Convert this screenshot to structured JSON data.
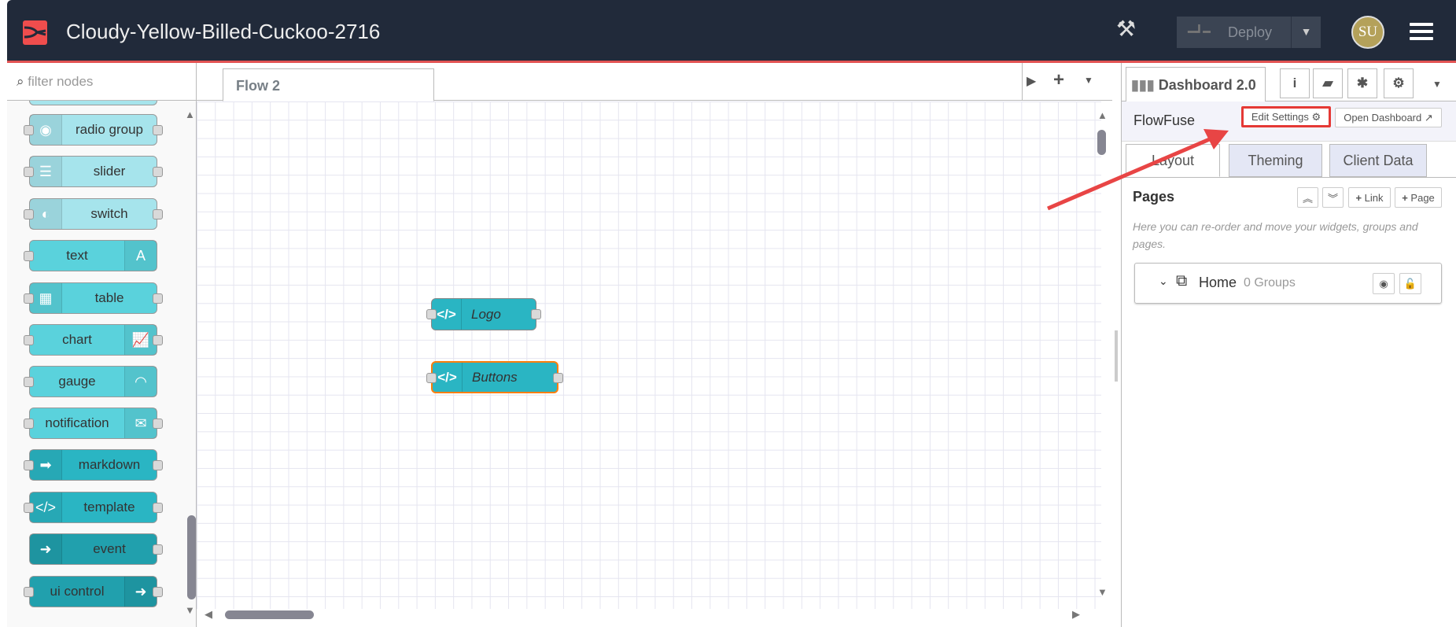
{
  "header": {
    "title": "Cloudy-Yellow-Billed-Cuckoo-2716",
    "deploy_label": "Deploy",
    "avatar_initials": "SU"
  },
  "palette": {
    "filter_placeholder": "filter nodes",
    "nodes": [
      {
        "label": "radio group",
        "icon": "radio-icon",
        "glyph": "◉",
        "side": "left",
        "color": "#a6e4ec",
        "in": true,
        "out": true
      },
      {
        "label": "slider",
        "icon": "slider-icon",
        "glyph": "☰",
        "side": "left",
        "color": "#a6e4ec",
        "in": true,
        "out": true
      },
      {
        "label": "switch",
        "icon": "toggle-icon",
        "glyph": "◐",
        "side": "left",
        "color": "#a6e4ec",
        "in": true,
        "out": true
      },
      {
        "label": "text",
        "icon": "font-icon",
        "glyph": "A",
        "side": "right",
        "color": "#5ad2dc",
        "in": true,
        "out": false
      },
      {
        "label": "table",
        "icon": "table-icon",
        "glyph": "▦",
        "side": "left",
        "color": "#5ad2dc",
        "in": true,
        "out": true
      },
      {
        "label": "chart",
        "icon": "line-chart-icon",
        "glyph": "📈",
        "side": "right",
        "color": "#5ad2dc",
        "in": true,
        "out": true
      },
      {
        "label": "gauge",
        "icon": "gauge-icon",
        "glyph": "◠",
        "side": "right",
        "color": "#5ad2dc",
        "in": true,
        "out": false
      },
      {
        "label": "notification",
        "icon": "envelope-icon",
        "glyph": "✉",
        "side": "right",
        "color": "#5ad2dc",
        "in": true,
        "out": true
      },
      {
        "label": "markdown",
        "icon": "markdown-icon",
        "glyph": "➡",
        "side": "left",
        "color": "#2ab5c3",
        "in": true,
        "out": true
      },
      {
        "label": "template",
        "icon": "code-icon",
        "glyph": "</>",
        "side": "left",
        "color": "#2ab5c3",
        "in": true,
        "out": true
      },
      {
        "label": "event",
        "icon": "arrow-circle-icon",
        "glyph": "➜",
        "side": "left",
        "color": "#21a0ad",
        "in": false,
        "out": true
      },
      {
        "label": "ui control",
        "icon": "arrow-circle-icon",
        "glyph": "➜",
        "side": "right",
        "color": "#21a0ad",
        "in": true,
        "out": true
      }
    ]
  },
  "workspace": {
    "tab": "Flow 2",
    "nodes": [
      {
        "label": "Logo"
      },
      {
        "label": "Buttons",
        "selected": true
      }
    ]
  },
  "sidebar": {
    "tab": "Dashboard 2.0",
    "title": "FlowFuse",
    "edit_settings": "Edit Settings",
    "open_dashboard": "Open Dashboard",
    "tabs": [
      "Layout",
      "Theming",
      "Client Data"
    ],
    "active_tab": "Layout",
    "pages_heading": "Pages",
    "link_btn": "Link",
    "page_btn": "Page",
    "description": "Here you can re-order and move your widgets, groups and pages.",
    "page": {
      "name": "Home",
      "groups": "0 Groups"
    }
  },
  "colors": {
    "header": "#212a3a",
    "accent": "#e25353",
    "highlight": "#e53935"
  }
}
